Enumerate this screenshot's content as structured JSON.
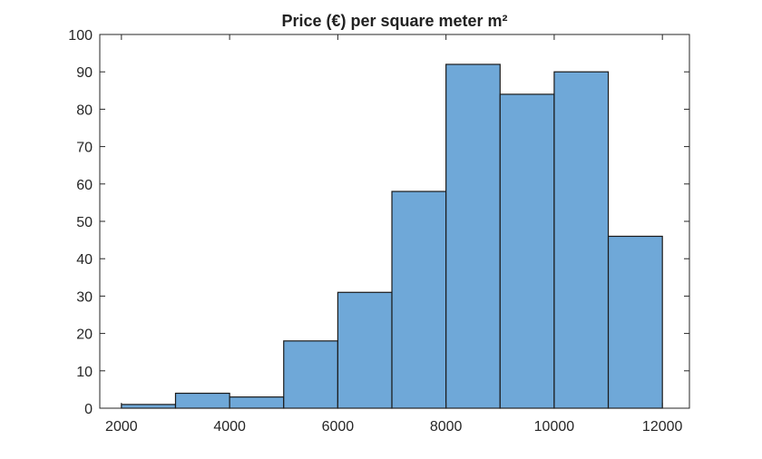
{
  "chart_data": {
    "type": "bar",
    "title": "Price (€) per square meter m²",
    "xlabel": "",
    "ylabel": "",
    "bin_edges": [
      2000,
      3000,
      4000,
      5000,
      6000,
      7000,
      8000,
      9000,
      10000,
      11000,
      12000
    ],
    "values": [
      1,
      4,
      3,
      18,
      31,
      58,
      92,
      84,
      90,
      46
    ],
    "xlim": [
      1600,
      12500
    ],
    "ylim": [
      0,
      100
    ],
    "xticks": [
      "2000",
      "4000",
      "6000",
      "8000",
      "10000",
      "12000"
    ],
    "yticks": [
      "0",
      "10",
      "20",
      "30",
      "40",
      "50",
      "60",
      "70",
      "80",
      "90",
      "100"
    ],
    "grid": false,
    "bar_color": "#6FA8D8",
    "edge_color": "#1A1A1A"
  }
}
